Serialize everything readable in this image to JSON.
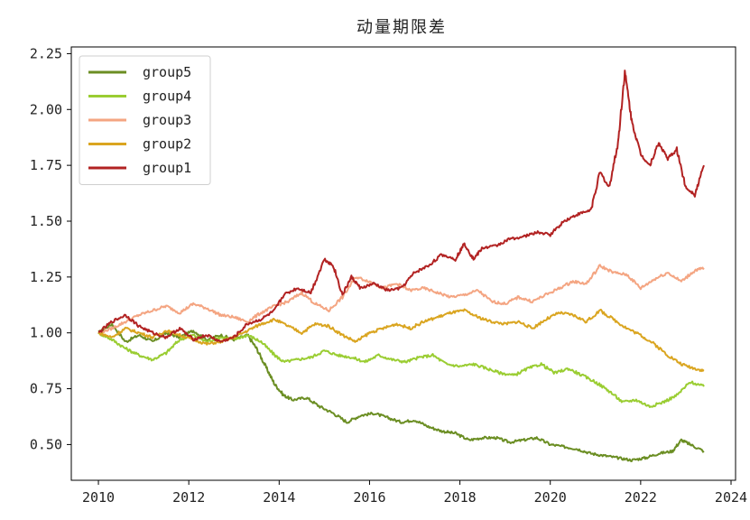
{
  "chart_data": {
    "type": "line",
    "title": "动量期限差",
    "xlabel": "",
    "ylabel": "",
    "xlim": [
      2009.4,
      2024.1
    ],
    "ylim": [
      0.34,
      2.28
    ],
    "xticks": [
      2010,
      2012,
      2014,
      2016,
      2018,
      2020,
      2022,
      2024
    ],
    "xtick_labels": [
      "2010",
      "2012",
      "2014",
      "2016",
      "2018",
      "2020",
      "2022",
      "2024"
    ],
    "yticks": [
      0.5,
      0.75,
      1.0,
      1.25,
      1.5,
      1.75,
      2.0,
      2.25
    ],
    "ytick_labels": [
      "0.50",
      "0.75",
      "1.00",
      "1.25",
      "1.50",
      "1.75",
      "2.00",
      "2.25"
    ],
    "grid": false,
    "legend_position": "top-left",
    "series": [
      {
        "name": "group5",
        "color": "#6b8e23",
        "x": [
          2010.0,
          2010.3,
          2010.6,
          2010.9,
          2011.2,
          2011.5,
          2011.8,
          2012.1,
          2012.4,
          2012.7,
          2013.0,
          2013.3,
          2013.5,
          2013.7,
          2013.9,
          2014.1,
          2014.3,
          2014.6,
          2014.9,
          2015.2,
          2015.5,
          2015.8,
          2016.1,
          2016.4,
          2016.7,
          2017.0,
          2017.3,
          2017.6,
          2017.9,
          2018.2,
          2018.5,
          2018.8,
          2019.1,
          2019.4,
          2019.7,
          2020.0,
          2020.3,
          2020.6,
          2020.9,
          2021.2,
          2021.5,
          2021.8,
          2022.1,
          2022.4,
          2022.7,
          2022.9,
          2023.1,
          2023.4
        ],
        "y": [
          1.0,
          1.04,
          0.96,
          0.99,
          0.96,
          1.0,
          0.98,
          1.01,
          0.97,
          0.99,
          0.97,
          0.99,
          0.93,
          0.85,
          0.77,
          0.72,
          0.7,
          0.71,
          0.67,
          0.64,
          0.6,
          0.63,
          0.64,
          0.62,
          0.6,
          0.61,
          0.58,
          0.56,
          0.55,
          0.52,
          0.53,
          0.53,
          0.51,
          0.52,
          0.53,
          0.5,
          0.49,
          0.48,
          0.46,
          0.45,
          0.44,
          0.43,
          0.44,
          0.46,
          0.47,
          0.52,
          0.5,
          0.47
        ]
      },
      {
        "name": "group4",
        "color": "#9acd32",
        "x": [
          2010.0,
          2010.3,
          2010.6,
          2010.9,
          2011.2,
          2011.5,
          2011.8,
          2012.1,
          2012.4,
          2012.7,
          2013.0,
          2013.3,
          2013.6,
          2013.9,
          2014.1,
          2014.4,
          2014.7,
          2015.0,
          2015.3,
          2015.6,
          2015.9,
          2016.2,
          2016.5,
          2016.8,
          2017.1,
          2017.4,
          2017.7,
          2018.0,
          2018.3,
          2018.6,
          2018.9,
          2019.2,
          2019.5,
          2019.8,
          2020.1,
          2020.4,
          2020.7,
          2021.0,
          2021.3,
          2021.6,
          2021.9,
          2022.2,
          2022.5,
          2022.8,
          2023.1,
          2023.4
        ],
        "y": [
          1.0,
          0.97,
          0.93,
          0.9,
          0.88,
          0.91,
          0.97,
          0.99,
          0.96,
          0.98,
          0.97,
          0.99,
          0.96,
          0.9,
          0.87,
          0.88,
          0.89,
          0.92,
          0.9,
          0.89,
          0.87,
          0.9,
          0.88,
          0.87,
          0.89,
          0.9,
          0.86,
          0.85,
          0.86,
          0.84,
          0.82,
          0.81,
          0.84,
          0.86,
          0.82,
          0.84,
          0.81,
          0.78,
          0.74,
          0.69,
          0.7,
          0.67,
          0.69,
          0.72,
          0.78,
          0.76
        ]
      },
      {
        "name": "group3",
        "color": "#f4a582",
        "x": [
          2010.0,
          2010.3,
          2010.6,
          2010.9,
          2011.2,
          2011.5,
          2011.8,
          2012.1,
          2012.4,
          2012.7,
          2013.0,
          2013.3,
          2013.6,
          2013.9,
          2014.2,
          2014.5,
          2014.8,
          2015.1,
          2015.4,
          2015.7,
          2016.0,
          2016.3,
          2016.6,
          2016.9,
          2017.2,
          2017.5,
          2017.8,
          2018.1,
          2018.4,
          2018.7,
          2019.0,
          2019.3,
          2019.6,
          2019.9,
          2020.2,
          2020.5,
          2020.8,
          2021.1,
          2021.4,
          2021.7,
          2022.0,
          2022.3,
          2022.6,
          2022.9,
          2023.2,
          2023.4
        ],
        "y": [
          1.0,
          1.02,
          1.05,
          1.08,
          1.1,
          1.12,
          1.09,
          1.13,
          1.11,
          1.08,
          1.07,
          1.05,
          1.09,
          1.12,
          1.14,
          1.18,
          1.13,
          1.1,
          1.16,
          1.25,
          1.23,
          1.2,
          1.22,
          1.19,
          1.2,
          1.18,
          1.16,
          1.17,
          1.19,
          1.14,
          1.13,
          1.16,
          1.14,
          1.17,
          1.2,
          1.23,
          1.22,
          1.3,
          1.27,
          1.26,
          1.2,
          1.24,
          1.27,
          1.23,
          1.28,
          1.29
        ]
      },
      {
        "name": "group2",
        "color": "#daa520",
        "x": [
          2010.0,
          2010.3,
          2010.6,
          2010.9,
          2011.2,
          2011.5,
          2011.8,
          2012.1,
          2012.4,
          2012.7,
          2013.0,
          2013.3,
          2013.6,
          2013.9,
          2014.2,
          2014.5,
          2014.8,
          2015.1,
          2015.4,
          2015.7,
          2016.0,
          2016.3,
          2016.6,
          2016.9,
          2017.2,
          2017.5,
          2017.8,
          2018.1,
          2018.4,
          2018.7,
          2019.0,
          2019.3,
          2019.6,
          2019.9,
          2020.2,
          2020.5,
          2020.8,
          2021.1,
          2021.4,
          2021.7,
          2022.0,
          2022.3,
          2022.6,
          2022.9,
          2023.2,
          2023.4
        ],
        "y": [
          1.0,
          0.98,
          1.02,
          1.0,
          0.98,
          1.01,
          0.99,
          0.97,
          0.95,
          0.96,
          0.98,
          1.01,
          1.04,
          1.06,
          1.03,
          1.0,
          1.04,
          1.03,
          0.99,
          0.96,
          1.0,
          1.02,
          1.04,
          1.02,
          1.05,
          1.07,
          1.09,
          1.1,
          1.07,
          1.05,
          1.04,
          1.05,
          1.02,
          1.06,
          1.09,
          1.08,
          1.05,
          1.1,
          1.06,
          1.02,
          0.99,
          0.95,
          0.9,
          0.86,
          0.84,
          0.83
        ]
      },
      {
        "name": "group1",
        "color": "#b22222",
        "x": [
          2010.0,
          2010.3,
          2010.6,
          2010.9,
          2011.2,
          2011.5,
          2011.8,
          2012.1,
          2012.4,
          2012.7,
          2013.0,
          2013.3,
          2013.6,
          2013.9,
          2014.1,
          2014.4,
          2014.7,
          2015.0,
          2015.2,
          2015.4,
          2015.6,
          2015.8,
          2016.1,
          2016.4,
          2016.7,
          2017.0,
          2017.3,
          2017.6,
          2017.9,
          2018.1,
          2018.3,
          2018.5,
          2018.8,
          2019.1,
          2019.4,
          2019.7,
          2020.0,
          2020.3,
          2020.6,
          2020.9,
          2021.1,
          2021.3,
          2021.5,
          2021.65,
          2021.8,
          2022.0,
          2022.2,
          2022.4,
          2022.6,
          2022.8,
          2023.0,
          2023.2,
          2023.4
        ],
        "y": [
          1.0,
          1.05,
          1.08,
          1.03,
          1.0,
          0.98,
          1.02,
          0.97,
          0.99,
          0.96,
          0.98,
          1.04,
          1.06,
          1.1,
          1.17,
          1.2,
          1.18,
          1.33,
          1.3,
          1.17,
          1.25,
          1.2,
          1.22,
          1.19,
          1.2,
          1.27,
          1.3,
          1.35,
          1.33,
          1.4,
          1.33,
          1.38,
          1.39,
          1.42,
          1.43,
          1.45,
          1.44,
          1.5,
          1.53,
          1.55,
          1.72,
          1.65,
          1.85,
          2.17,
          1.95,
          1.8,
          1.75,
          1.85,
          1.78,
          1.82,
          1.65,
          1.62,
          1.75
        ]
      }
    ]
  }
}
